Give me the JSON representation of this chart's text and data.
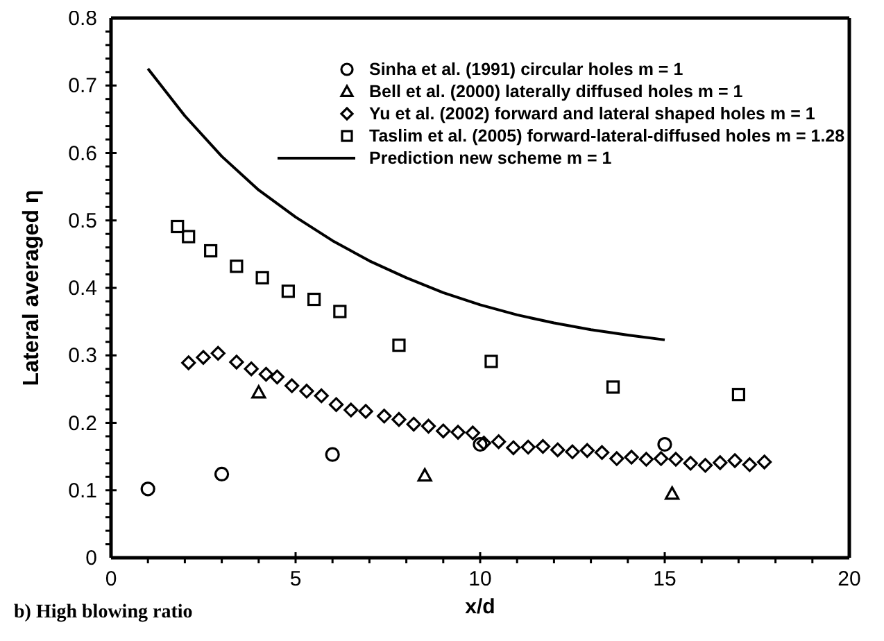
{
  "chart_data": {
    "type": "scatter",
    "xlabel": "x/d",
    "ylabel": "Lateral averaged η",
    "xlim": [
      0,
      20
    ],
    "ylim": [
      0,
      0.8
    ],
    "xticks": [
      0,
      {
        "value": 1,
        "label": null
      },
      {
        "value": 2,
        "label": null
      },
      {
        "value": 3,
        "label": null
      },
      {
        "value": 4,
        "label": null
      },
      5,
      {
        "value": 6,
        "label": null
      },
      {
        "value": 7,
        "label": null
      },
      {
        "value": 8,
        "label": null
      },
      {
        "value": 9,
        "label": null
      },
      10,
      {
        "value": 11,
        "label": null
      },
      {
        "value": 12,
        "label": null
      },
      {
        "value": 13,
        "label": null
      },
      {
        "value": 14,
        "label": null
      },
      15,
      {
        "value": 16,
        "label": null
      },
      {
        "value": 17,
        "label": null
      },
      {
        "value": 18,
        "label": null
      },
      {
        "value": 19,
        "label": null
      },
      20
    ],
    "yticks": [
      0,
      {
        "value": 0.02,
        "label": null
      },
      {
        "value": 0.04,
        "label": null
      },
      {
        "value": 0.06,
        "label": null
      },
      {
        "value": 0.08,
        "label": null
      },
      0.1,
      {
        "value": 0.12,
        "label": null
      },
      {
        "value": 0.14,
        "label": null
      },
      {
        "value": 0.16,
        "label": null
      },
      {
        "value": 0.18,
        "label": null
      },
      0.2,
      {
        "value": 0.22,
        "label": null
      },
      {
        "value": 0.24,
        "label": null
      },
      {
        "value": 0.26,
        "label": null
      },
      {
        "value": 0.28,
        "label": null
      },
      0.3,
      {
        "value": 0.32,
        "label": null
      },
      {
        "value": 0.34,
        "label": null
      },
      {
        "value": 0.36,
        "label": null
      },
      {
        "value": 0.38,
        "label": null
      },
      0.4,
      {
        "value": 0.42,
        "label": null
      },
      {
        "value": 0.44,
        "label": null
      },
      {
        "value": 0.46,
        "label": null
      },
      {
        "value": 0.48,
        "label": null
      },
      0.5,
      {
        "value": 0.52,
        "label": null
      },
      {
        "value": 0.54,
        "label": null
      },
      {
        "value": 0.56,
        "label": null
      },
      {
        "value": 0.58,
        "label": null
      },
      0.6,
      {
        "value": 0.62,
        "label": null
      },
      {
        "value": 0.64,
        "label": null
      },
      {
        "value": 0.66,
        "label": null
      },
      {
        "value": 0.68,
        "label": null
      },
      0.7,
      {
        "value": 0.72,
        "label": null
      },
      {
        "value": 0.74,
        "label": null
      },
      {
        "value": 0.76,
        "label": null
      },
      {
        "value": 0.78,
        "label": null
      },
      0.8
    ],
    "legend": "top",
    "annotations": [
      "b) High blowing ratio"
    ],
    "series": [
      {
        "name": "Sinha et al. (1991) circular holes m = 1",
        "color": "#000000",
        "marker": "circle",
        "x": [
          1,
          3,
          6,
          10,
          15
        ],
        "values": [
          0.102,
          0.124,
          0.153,
          0.168,
          0.168
        ]
      },
      {
        "name": "Bell et al. (2000) laterally diffused holes m = 1",
        "color": "#000000",
        "marker": "triangle",
        "x": [
          4,
          8.5,
          15.2
        ],
        "values": [
          0.245,
          0.122,
          0.095
        ]
      },
      {
        "name": "Yu et al. (2002) forward and lateral shaped holes m = 1",
        "color": "#000000",
        "marker": "diamond",
        "x": [
          2.1,
          2.5,
          2.9,
          3.4,
          3.8,
          4.2,
          4.5,
          4.9,
          5.3,
          5.7,
          6.1,
          6.5,
          6.9,
          7.4,
          7.8,
          8.2,
          8.6,
          9.0,
          9.4,
          9.8,
          10.1,
          10.5,
          10.9,
          11.3,
          11.7,
          12.1,
          12.5,
          12.9,
          13.3,
          13.7,
          14.1,
          14.5,
          14.9,
          15.3,
          15.7,
          16.1,
          16.5,
          16.9,
          17.3,
          17.7
        ],
        "values": [
          0.289,
          0.297,
          0.303,
          0.29,
          0.28,
          0.272,
          0.268,
          0.255,
          0.247,
          0.24,
          0.227,
          0.219,
          0.217,
          0.21,
          0.205,
          0.198,
          0.195,
          0.188,
          0.186,
          0.185,
          0.17,
          0.172,
          0.163,
          0.164,
          0.165,
          0.16,
          0.157,
          0.159,
          0.156,
          0.147,
          0.149,
          0.146,
          0.147,
          0.146,
          0.14,
          0.137,
          0.141,
          0.144,
          0.138,
          0.142
        ]
      },
      {
        "name": "Taslim et al. (2005) forward-lateral-diffused holes m = 1.28",
        "color": "#000000",
        "marker": "square",
        "x": [
          1.8,
          2.1,
          2.7,
          3.4,
          4.1,
          4.8,
          5.5,
          6.2,
          7.8,
          10.3,
          13.6,
          17.0
        ],
        "values": [
          0.491,
          0.476,
          0.455,
          0.432,
          0.415,
          0.395,
          0.383,
          0.365,
          0.315,
          0.291,
          0.253,
          0.242
        ]
      },
      {
        "name": "Prediction new scheme m = 1",
        "type": "line",
        "color": "#000000",
        "marker": "none",
        "line_style": "solid",
        "x": [
          1,
          2,
          3,
          4,
          5,
          6,
          7,
          8,
          9,
          10,
          11,
          12,
          13,
          14,
          15
        ],
        "values": [
          0.725,
          0.655,
          0.595,
          0.545,
          0.505,
          0.47,
          0.44,
          0.415,
          0.393,
          0.375,
          0.36,
          0.348,
          0.338,
          0.33,
          0.323
        ]
      }
    ]
  }
}
